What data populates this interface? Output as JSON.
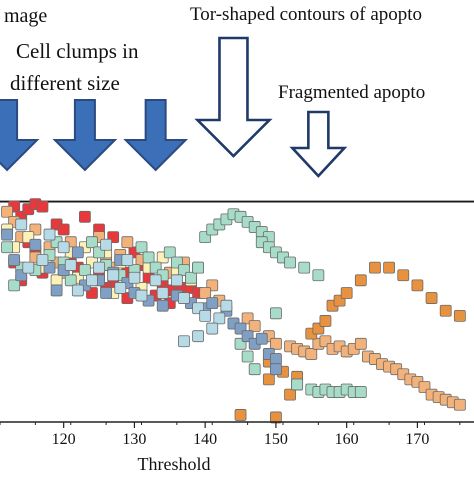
{
  "chart_data": {
    "type": "scatter",
    "title": "",
    "xlabel": "Threshold",
    "ylabel": "",
    "xlim": [
      111,
      178
    ],
    "ylim": [
      0,
      100
    ],
    "x_ticks": [
      120,
      130,
      140,
      150,
      160,
      170
    ],
    "grid": false,
    "legend": "none",
    "reference_line_y": 86,
    "annotations": [
      {
        "text": "mage",
        "points_to_x": null
      },
      {
        "text": "Cell clumps in",
        "points_to_x": 126
      },
      {
        "text": "different size",
        "points_to_x": 126
      },
      {
        "text": "Tor-shaped contours of apopto",
        "points_to_x": 144
      },
      {
        "text": "Fragmented apopto",
        "points_to_x": 156
      }
    ],
    "arrows": [
      {
        "x": 112,
        "style": "filled"
      },
      {
        "x": 123,
        "style": "filled"
      },
      {
        "x": 133,
        "style": "filled"
      },
      {
        "x": 144,
        "style": "outline"
      },
      {
        "x": 156,
        "style": "outline"
      }
    ],
    "colors": {
      "filled_arrow": "#3b6fb8",
      "filled_arrow_edge": "#2a4a80",
      "outline_arrow": "#1f3a68",
      "axis": "#222222"
    },
    "series": [
      {
        "color": "#e8383b",
        "points": [
          [
            113,
            84
          ],
          [
            114,
            80
          ],
          [
            115,
            83
          ],
          [
            116,
            85
          ],
          [
            117,
            84
          ],
          [
            115,
            70
          ],
          [
            116,
            67
          ],
          [
            113,
            62
          ],
          [
            117,
            58
          ],
          [
            114,
            55
          ],
          [
            119,
            77
          ],
          [
            120,
            75
          ],
          [
            123,
            80
          ],
          [
            125,
            75
          ],
          [
            127,
            72
          ],
          [
            121,
            63
          ],
          [
            122,
            60
          ],
          [
            125,
            57
          ],
          [
            127,
            54
          ],
          [
            124,
            50
          ],
          [
            126,
            52
          ],
          [
            130,
            66
          ],
          [
            131,
            61
          ],
          [
            129,
            58
          ],
          [
            132,
            56
          ],
          [
            134,
            53
          ],
          [
            136,
            53
          ],
          [
            137,
            52
          ],
          [
            138,
            52
          ],
          [
            139,
            50
          ],
          [
            133,
            49
          ],
          [
            135,
            51
          ],
          [
            135,
            46
          ],
          [
            129,
            48
          ]
        ]
      },
      {
        "color": "#f2b27a",
        "points": [
          [
            112,
            82
          ],
          [
            113,
            78
          ],
          [
            116,
            75
          ],
          [
            114,
            72
          ],
          [
            116,
            64
          ],
          [
            118,
            68
          ],
          [
            119,
            62
          ],
          [
            120,
            58
          ],
          [
            121,
            70
          ],
          [
            125,
            72
          ],
          [
            126,
            63
          ],
          [
            127,
            60
          ],
          [
            128,
            65
          ],
          [
            129,
            70
          ],
          [
            131,
            63
          ],
          [
            133,
            60
          ],
          [
            135,
            58
          ],
          [
            137,
            62
          ],
          [
            139,
            60
          ],
          [
            141,
            53
          ],
          [
            140,
            50
          ],
          [
            142,
            47
          ],
          [
            146,
            40
          ],
          [
            147,
            37
          ],
          [
            149,
            33
          ],
          [
            150,
            30
          ],
          [
            152,
            29
          ],
          [
            153,
            28
          ],
          [
            154,
            27
          ],
          [
            155,
            26
          ],
          [
            156,
            30
          ],
          [
            157,
            31
          ],
          [
            158,
            28
          ],
          [
            159,
            29
          ],
          [
            160,
            27
          ],
          [
            161,
            28
          ],
          [
            162,
            30
          ],
          [
            163,
            25
          ],
          [
            164,
            24
          ],
          [
            165,
            22
          ],
          [
            166,
            21
          ],
          [
            167,
            20
          ],
          [
            168,
            18
          ],
          [
            169,
            16
          ],
          [
            170,
            15
          ],
          [
            171,
            13
          ],
          [
            172,
            10
          ],
          [
            173,
            9
          ],
          [
            174,
            8
          ],
          [
            175,
            7
          ],
          [
            176,
            6
          ]
        ]
      },
      {
        "color": "#e8923f",
        "points": [
          [
            149,
            23
          ],
          [
            149,
            16
          ],
          [
            151,
            19
          ],
          [
            145,
            2
          ],
          [
            150,
            1
          ],
          [
            153,
            17
          ],
          [
            152,
            10
          ],
          [
            153,
            14
          ],
          [
            155,
            34
          ],
          [
            156,
            36
          ],
          [
            157,
            39
          ],
          [
            158,
            45
          ],
          [
            159,
            47
          ],
          [
            160,
            50
          ],
          [
            162,
            55
          ],
          [
            164,
            60
          ],
          [
            166,
            60
          ],
          [
            168,
            57
          ],
          [
            170,
            53
          ],
          [
            172,
            48
          ],
          [
            174,
            43
          ],
          [
            176,
            41
          ]
        ]
      },
      {
        "color": "#fcf2b8",
        "points": [
          [
            112,
            75
          ],
          [
            115,
            72
          ],
          [
            113,
            68
          ],
          [
            117,
            60
          ],
          [
            119,
            55
          ],
          [
            121,
            66
          ],
          [
            123,
            68
          ],
          [
            124,
            62
          ],
          [
            122,
            56
          ],
          [
            126,
            66
          ],
          [
            128,
            62
          ],
          [
            130,
            57
          ],
          [
            132,
            60
          ],
          [
            134,
            64
          ],
          [
            136,
            58
          ],
          [
            138,
            55
          ],
          [
            131,
            52
          ],
          [
            127,
            50
          ]
        ]
      },
      {
        "color": "#a7dcc8",
        "points": [
          [
            112,
            68
          ],
          [
            114,
            60
          ],
          [
            113,
            53
          ],
          [
            116,
            59
          ],
          [
            118,
            65
          ],
          [
            119,
            70
          ],
          [
            120,
            62
          ],
          [
            121,
            55
          ],
          [
            123,
            59
          ],
          [
            124,
            70
          ],
          [
            125,
            66
          ],
          [
            126,
            61
          ],
          [
            128,
            57
          ],
          [
            129,
            54
          ],
          [
            130,
            59
          ],
          [
            131,
            68
          ],
          [
            132,
            64
          ],
          [
            133,
            60
          ],
          [
            134,
            57
          ],
          [
            135,
            66
          ],
          [
            136,
            62
          ],
          [
            137,
            59
          ],
          [
            138,
            56
          ],
          [
            139,
            60
          ],
          [
            140,
            72
          ],
          [
            141,
            75
          ],
          [
            142,
            77
          ],
          [
            143,
            79
          ],
          [
            144,
            81
          ],
          [
            145,
            80
          ],
          [
            146,
            78
          ],
          [
            147,
            76
          ],
          [
            148,
            74
          ],
          [
            149,
            72
          ],
          [
            148,
            70
          ],
          [
            149,
            68
          ],
          [
            150,
            66
          ],
          [
            151,
            64
          ],
          [
            152,
            62
          ],
          [
            154,
            60
          ],
          [
            156,
            57
          ],
          [
            150,
            42
          ],
          [
            144,
            38
          ],
          [
            145,
            30
          ],
          [
            146,
            25
          ],
          [
            147,
            20
          ],
          [
            153,
            14
          ],
          [
            155,
            12
          ],
          [
            156,
            11
          ],
          [
            157,
            12
          ],
          [
            158,
            11
          ],
          [
            159,
            11
          ],
          [
            160,
            12
          ],
          [
            161,
            11
          ],
          [
            162,
            11
          ]
        ]
      },
      {
        "color": "#7f9fc4",
        "points": [
          [
            112,
            73
          ],
          [
            113,
            63
          ],
          [
            114,
            57
          ],
          [
            116,
            69
          ],
          [
            118,
            60
          ],
          [
            119,
            51
          ],
          [
            120,
            59
          ],
          [
            122,
            66
          ],
          [
            123,
            53
          ],
          [
            125,
            55
          ],
          [
            126,
            50
          ],
          [
            127,
            58
          ],
          [
            128,
            63
          ],
          [
            129,
            54
          ],
          [
            130,
            50
          ],
          [
            132,
            47
          ],
          [
            134,
            45
          ],
          [
            136,
            49
          ],
          [
            138,
            46
          ],
          [
            140,
            44
          ],
          [
            141,
            46
          ],
          [
            143,
            43
          ],
          [
            144,
            38
          ],
          [
            145,
            36
          ],
          [
            146,
            33
          ],
          [
            147,
            30
          ],
          [
            148,
            32
          ],
          [
            149,
            26
          ],
          [
            150,
            24
          ],
          [
            150,
            20
          ]
        ]
      },
      {
        "color": "#b6dbe7",
        "points": [
          [
            114,
            77
          ],
          [
            115,
            60
          ],
          [
            117,
            63
          ],
          [
            118,
            73
          ],
          [
            120,
            68
          ],
          [
            121,
            61
          ],
          [
            122,
            51
          ],
          [
            124,
            55
          ],
          [
            125,
            60
          ],
          [
            126,
            69
          ],
          [
            127,
            57
          ],
          [
            128,
            52
          ],
          [
            129,
            63
          ],
          [
            130,
            56
          ],
          [
            131,
            49
          ],
          [
            133,
            55
          ],
          [
            134,
            50
          ],
          [
            136,
            55
          ],
          [
            137,
            48
          ],
          [
            139,
            44
          ],
          [
            140,
            41
          ],
          [
            142,
            40
          ],
          [
            143,
            45
          ],
          [
            141,
            36
          ],
          [
            139,
            33
          ],
          [
            137,
            31
          ]
        ]
      }
    ]
  }
}
